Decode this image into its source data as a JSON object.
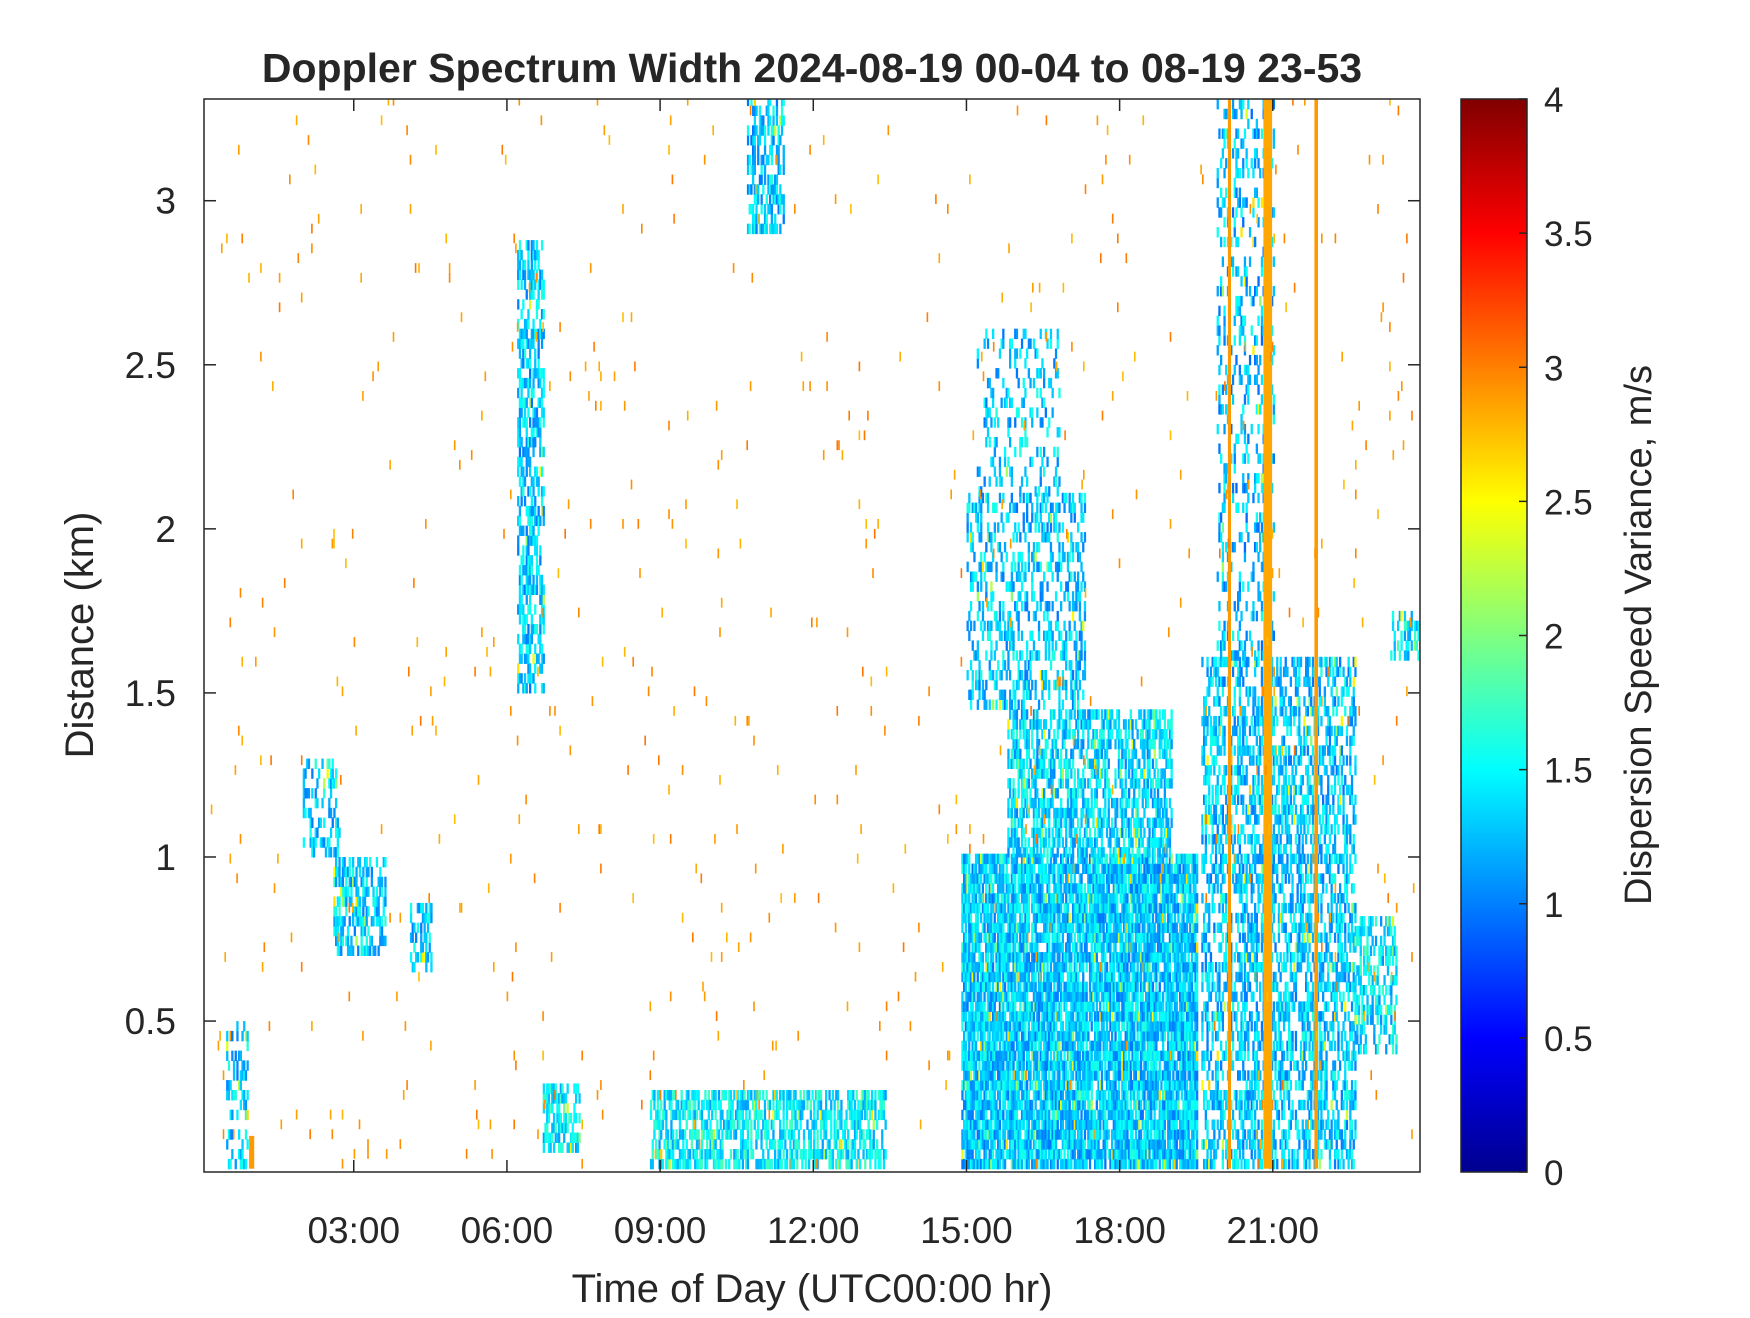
{
  "chart_data": {
    "type": "heatmap",
    "title": "Doppler Spectrum Width 2024-08-19 00-04 to 08-19 23-53",
    "xlabel": "Time of Day (UTC00:00 hr)",
    "ylabel": "Distance (km)",
    "xlim_hours": [
      0.067,
      23.883
    ],
    "ylim_km": [
      0.04,
      3.31
    ],
    "x_ticks": [
      {
        "value": 3,
        "label": "03:00"
      },
      {
        "value": 6,
        "label": "06:00"
      },
      {
        "value": 9,
        "label": "09:00"
      },
      {
        "value": 12,
        "label": "12:00"
      },
      {
        "value": 15,
        "label": "15:00"
      },
      {
        "value": 18,
        "label": "18:00"
      },
      {
        "value": 21,
        "label": "21:00"
      }
    ],
    "y_ticks": [
      {
        "value": 0.5,
        "label": "0.5"
      },
      {
        "value": 1,
        "label": "1"
      },
      {
        "value": 1.5,
        "label": "1.5"
      },
      {
        "value": 2,
        "label": "2"
      },
      {
        "value": 2.5,
        "label": "2.5"
      },
      {
        "value": 3,
        "label": "3"
      }
    ],
    "colorbar": {
      "label": "Dispersion Speed Variance, m/s",
      "range": [
        0,
        4
      ],
      "colormap": "jet",
      "ticks": [
        {
          "value": 0,
          "label": "0"
        },
        {
          "value": 0.5,
          "label": "0.5"
        },
        {
          "value": 1,
          "label": "1"
        },
        {
          "value": 1.5,
          "label": "1.5"
        },
        {
          "value": 2,
          "label": "2"
        },
        {
          "value": 2.5,
          "label": "2.5"
        },
        {
          "value": 3,
          "label": "3"
        },
        {
          "value": 3.5,
          "label": "3.5"
        },
        {
          "value": 4,
          "label": "4"
        }
      ]
    },
    "regions": [
      {
        "t0": 0.5,
        "t1": 0.9,
        "z0": 0.05,
        "z1": 0.5,
        "v": 1.3,
        "density": 0.35
      },
      {
        "t0": 2.0,
        "t1": 2.7,
        "z0": 1.0,
        "z1": 1.3,
        "v": 1.3,
        "density": 0.35
      },
      {
        "t0": 2.6,
        "t1": 3.6,
        "z0": 0.7,
        "z1": 1.0,
        "v": 1.35,
        "density": 0.55
      },
      {
        "t0": 4.1,
        "t1": 4.5,
        "z0": 0.65,
        "z1": 0.85,
        "v": 1.3,
        "density": 0.5
      },
      {
        "t0": 6.2,
        "t1": 6.7,
        "z0": 1.5,
        "z1": 2.85,
        "v": 1.3,
        "density": 0.55
      },
      {
        "t0": 6.7,
        "t1": 7.4,
        "z0": 0.1,
        "z1": 0.3,
        "v": 1.45,
        "density": 0.6
      },
      {
        "t0": 8.8,
        "t1": 13.4,
        "z0": 0.05,
        "z1": 0.28,
        "v": 1.45,
        "density": 0.6
      },
      {
        "t0": 10.7,
        "t1": 11.4,
        "z0": 2.9,
        "z1": 3.31,
        "v": 1.3,
        "density": 0.5
      },
      {
        "t0": 14.9,
        "t1": 19.5,
        "z0": 0.05,
        "z1": 1.0,
        "v": 1.3,
        "density": 0.85
      },
      {
        "t0": 15.8,
        "t1": 19.0,
        "z0": 1.0,
        "z1": 1.45,
        "v": 1.35,
        "density": 0.6
      },
      {
        "t0": 15.0,
        "t1": 17.3,
        "z0": 1.45,
        "z1": 2.1,
        "v": 1.3,
        "density": 0.35
      },
      {
        "t0": 15.2,
        "t1": 16.8,
        "z0": 2.1,
        "z1": 2.6,
        "v": 1.3,
        "density": 0.2
      },
      {
        "t0": 19.6,
        "t1": 22.6,
        "z0": 0.05,
        "z1": 1.6,
        "v": 1.3,
        "density": 0.5
      },
      {
        "t0": 19.9,
        "t1": 21.0,
        "z0": 1.6,
        "z1": 3.31,
        "v": 1.25,
        "density": 0.25
      },
      {
        "t0": 22.6,
        "t1": 23.4,
        "z0": 0.4,
        "z1": 0.8,
        "v": 1.4,
        "density": 0.5
      },
      {
        "t0": 23.3,
        "t1": 23.88,
        "z0": 1.6,
        "z1": 1.75,
        "v": 1.45,
        "density": 0.5
      }
    ],
    "bands": [
      {
        "t": 20.15,
        "width_h": 0.06,
        "z0": 0.05,
        "z1": 3.31,
        "v": 2.9
      },
      {
        "t": 20.9,
        "width_h": 0.17,
        "z0": 0.05,
        "z1": 3.31,
        "v": 2.85
      },
      {
        "t": 21.85,
        "width_h": 0.07,
        "z0": 0.05,
        "z1": 3.31,
        "v": 2.9
      },
      {
        "t": 1.0,
        "width_h": 0.1,
        "z0": 0.05,
        "z1": 0.15,
        "v": 2.9
      }
    ],
    "sparse_speckle": {
      "t0": 0.2,
      "t1": 23.8,
      "z0": 0.05,
      "z1": 3.31,
      "v": 2.9,
      "density": 0.008
    }
  }
}
